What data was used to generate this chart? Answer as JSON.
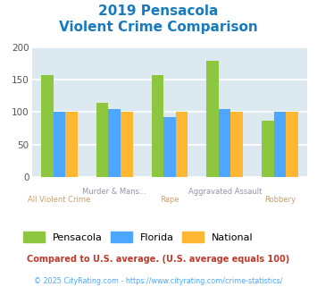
{
  "title_line1": "2019 Pensacola",
  "title_line2": "Violent Crime Comparison",
  "title_color": "#1a7abf",
  "pensacola": [
    157,
    115,
    157,
    179,
    87
  ],
  "florida": [
    101,
    105,
    92,
    104,
    101
  ],
  "national": [
    100,
    101,
    101,
    101,
    101
  ],
  "pensacola_color": "#8dc63f",
  "florida_color": "#4da6ff",
  "national_color": "#ffb733",
  "ylim": [
    0,
    200
  ],
  "yticks": [
    0,
    50,
    100,
    150,
    200
  ],
  "bg_color": "#dce9f0",
  "grid_color": "#ffffff",
  "legend_labels": [
    "Pensacola",
    "Florida",
    "National"
  ],
  "top_labels": [
    "",
    "Murder & Mans...",
    "",
    "Aggravated Assault",
    ""
  ],
  "bot_labels": [
    "All Violent Crime",
    "",
    "Rape",
    "",
    "Robbery"
  ],
  "top_label_color": "#9b8faa",
  "bot_label_color": "#c8a06e",
  "footnote1": "Compared to U.S. average. (U.S. average equals 100)",
  "footnote2": "© 2025 CityRating.com - https://www.cityrating.com/crime-statistics/",
  "footnote1_color": "#c0392b",
  "footnote2_color": "#4da6ff"
}
